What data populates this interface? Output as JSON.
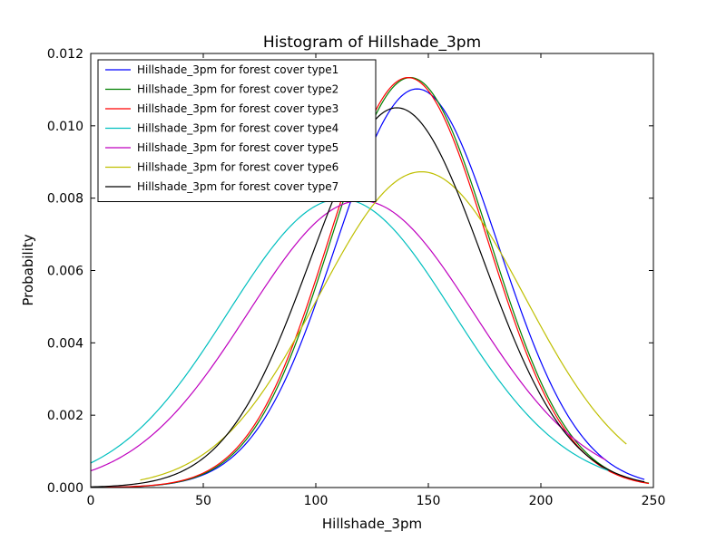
{
  "chart_data": {
    "type": "line",
    "title": "Histogram of Hillshade_3pm",
    "xlabel": "Hillshade_3pm",
    "ylabel": "Probability",
    "xlim": [
      0,
      250
    ],
    "ylim": [
      0,
      0.012
    ],
    "xticks": [
      0,
      50,
      100,
      150,
      200,
      250
    ],
    "xtick_labels": [
      "0",
      "50",
      "100",
      "150",
      "200",
      "250"
    ],
    "yticks": [
      0,
      0.002,
      0.004,
      0.006,
      0.008,
      0.01,
      0.012
    ],
    "ytick_labels": [
      "0.000",
      "0.002",
      "0.004",
      "0.006",
      "0.008",
      "0.010",
      "0.012"
    ],
    "grid": false,
    "legend_position": "top-left",
    "series": [
      {
        "name": "Hillshade_3pm for forest cover type1",
        "color": "#0000ff",
        "x_range": [
          0,
          246
        ],
        "mean": 145,
        "std": 36.2
      },
      {
        "name": "Hillshade_3pm for forest cover type2",
        "color": "#008000",
        "x_range": [
          0,
          248
        ],
        "mean": 142,
        "std": 35.2
      },
      {
        "name": "Hillshade_3pm for forest cover type3",
        "color": "#ff0000",
        "x_range": [
          0,
          248
        ],
        "mean": 141,
        "std": 35.2
      },
      {
        "name": "Hillshade_3pm for forest cover type4",
        "color": "#00bfbf",
        "x_range": [
          0,
          230
        ],
        "mean": 111,
        "std": 50.0
      },
      {
        "name": "Hillshade_3pm for forest cover type5",
        "color": "#bf00bf",
        "x_range": [
          0,
          229
        ],
        "mean": 120,
        "std": 50.3
      },
      {
        "name": "Hillshade_3pm for forest cover type6",
        "color": "#bfbf00",
        "x_range": [
          22,
          238
        ],
        "mean": 147,
        "std": 45.7
      },
      {
        "name": "Hillshade_3pm for forest cover type7",
        "color": "#000000",
        "x_range": [
          0,
          246
        ],
        "mean": 136,
        "std": 38.0
      }
    ]
  }
}
